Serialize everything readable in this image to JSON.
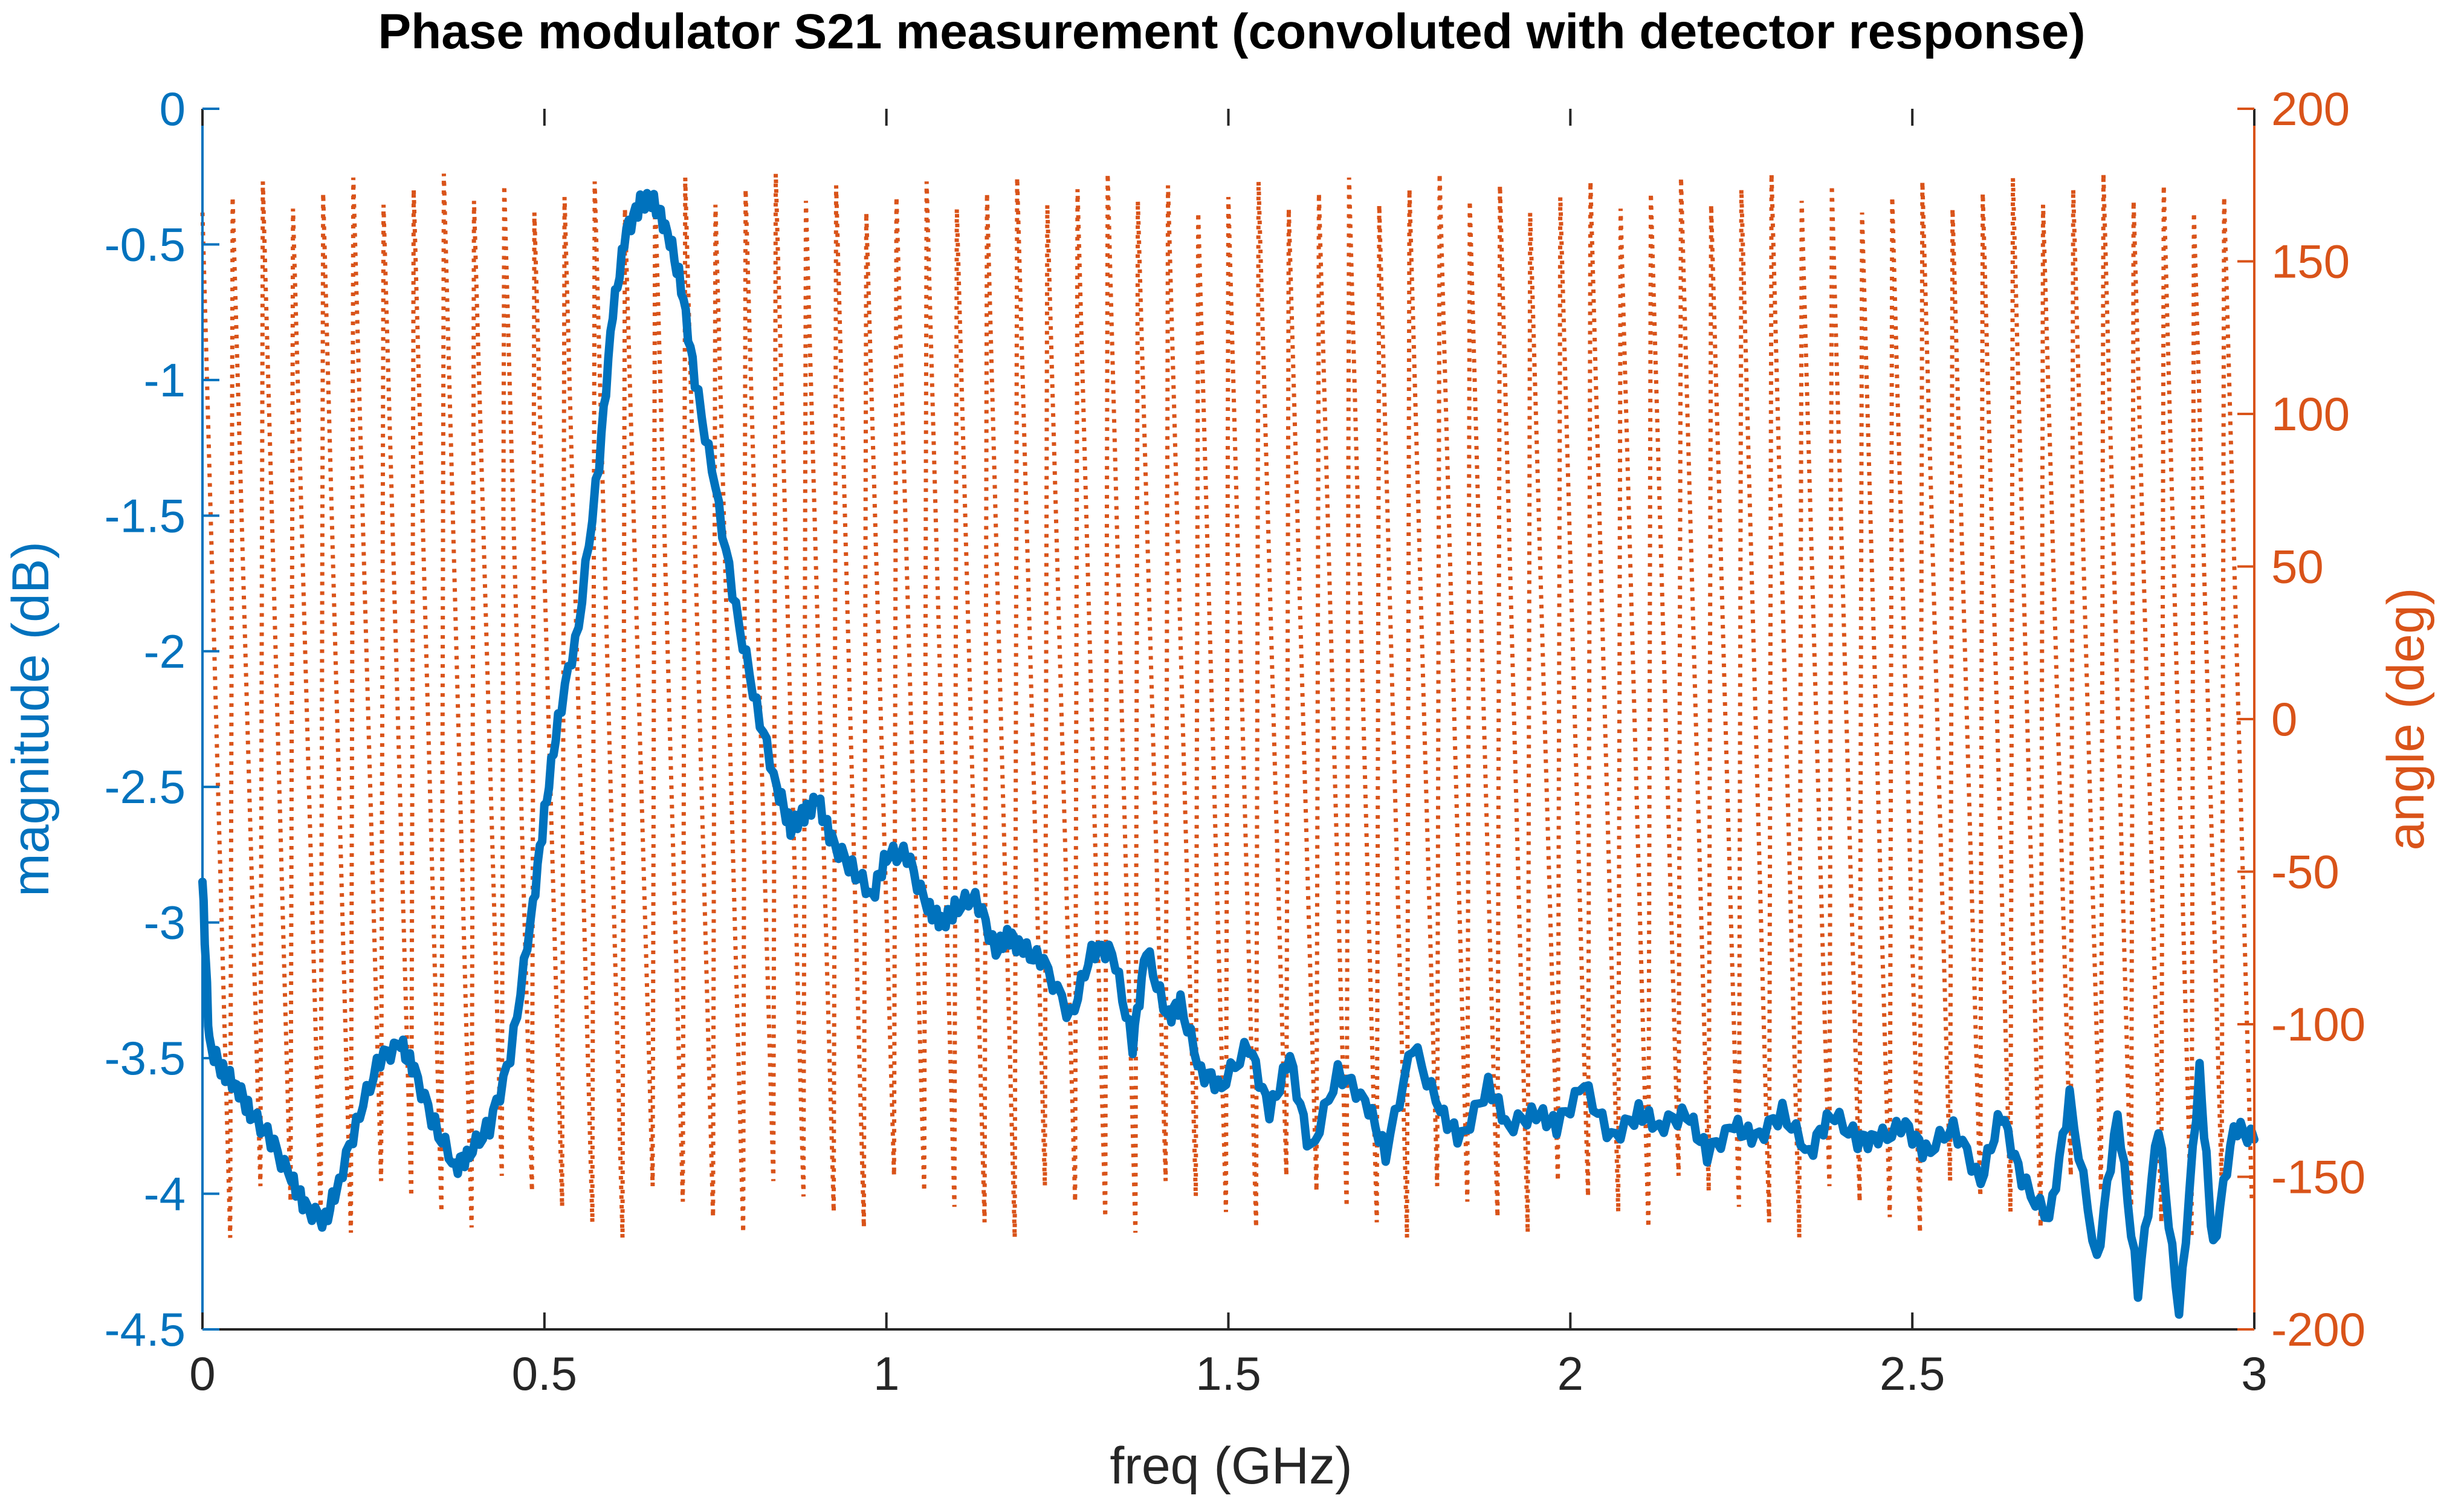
{
  "chart_data": {
    "type": "line",
    "title": "Phase modulator S21 measurement (convoluted with detector response)",
    "xlabel": "freq (GHz)",
    "ylabel_left": "magnitude (dB)",
    "ylabel_right": "angle (deg)",
    "xlim": [
      0,
      3
    ],
    "ylim_left": [
      -4.5,
      0
    ],
    "ylim_right": [
      -200,
      200
    ],
    "x_ticks": [
      "0",
      "0.5",
      "1",
      "1.5",
      "2",
      "2.5",
      "3"
    ],
    "y_ticks_left": [
      "0",
      "-0.5",
      "-1",
      "-1.5",
      "-2",
      "-2.5",
      "-3",
      "-3.5",
      "-4",
      "-4.5"
    ],
    "y_ticks_right": [
      "200",
      "150",
      "100",
      "50",
      "0",
      "-50",
      "-100",
      "-150",
      "-200"
    ],
    "grid": false,
    "colors": {
      "magnitude": "#0072BD",
      "angle": "#D95319",
      "text": "#000000"
    },
    "series": [
      {
        "axis": "left",
        "style": "solid",
        "x": [
          0.0,
          0.01,
          0.03,
          0.05,
          0.07,
          0.1,
          0.13,
          0.15,
          0.18,
          0.2,
          0.23,
          0.26,
          0.29,
          0.31,
          0.34,
          0.37,
          0.39,
          0.42,
          0.45,
          0.48,
          0.5,
          0.52,
          0.55,
          0.58,
          0.6,
          0.62,
          0.64,
          0.66,
          0.68,
          0.7,
          0.72,
          0.75,
          0.78,
          0.81,
          0.84,
          0.86,
          0.88,
          0.9,
          0.92,
          0.95,
          0.98,
          1.0,
          1.03,
          1.06,
          1.08,
          1.1,
          1.13,
          1.16,
          1.18,
          1.2,
          1.23,
          1.27,
          1.3,
          1.33,
          1.36,
          1.38,
          1.41,
          1.43,
          1.46,
          1.49,
          1.53,
          1.56,
          1.59,
          1.62,
          1.66,
          1.7,
          1.73,
          1.77,
          1.81,
          1.84,
          1.88,
          1.91,
          1.95,
          1.98,
          2.02,
          2.06,
          2.1,
          2.13,
          2.17,
          2.2,
          2.24,
          2.27,
          2.31,
          2.35,
          2.38,
          2.42,
          2.45,
          2.49,
          2.52,
          2.56,
          2.6,
          2.63,
          2.66,
          2.7,
          2.73,
          2.77,
          2.8,
          2.83,
          2.86,
          2.89,
          2.92,
          2.94,
          2.97,
          3.0
        ],
        "y": [
          -2.85,
          -3.45,
          -3.55,
          -3.6,
          -3.7,
          -3.8,
          -3.95,
          -4.05,
          -4.1,
          -3.95,
          -3.7,
          -3.5,
          -3.45,
          -3.55,
          -3.75,
          -3.9,
          -3.85,
          -3.75,
          -3.5,
          -3.0,
          -2.6,
          -2.25,
          -1.9,
          -1.3,
          -0.75,
          -0.45,
          -0.35,
          -0.34,
          -0.45,
          -0.65,
          -1.0,
          -1.4,
          -1.85,
          -2.2,
          -2.5,
          -2.65,
          -2.6,
          -2.55,
          -2.7,
          -2.8,
          -2.9,
          -2.75,
          -2.75,
          -2.95,
          -3.0,
          -2.95,
          -2.9,
          -3.1,
          -3.05,
          -3.1,
          -3.15,
          -3.35,
          -3.1,
          -3.1,
          -3.45,
          -3.1,
          -3.35,
          -3.3,
          -3.55,
          -3.6,
          -3.45,
          -3.7,
          -3.5,
          -3.85,
          -3.55,
          -3.65,
          -3.85,
          -3.45,
          -3.7,
          -3.8,
          -3.6,
          -3.75,
          -3.7,
          -3.75,
          -3.6,
          -3.8,
          -3.7,
          -3.75,
          -3.7,
          -3.85,
          -3.75,
          -3.8,
          -3.7,
          -3.85,
          -3.7,
          -3.8,
          -3.8,
          -3.75,
          -3.85,
          -3.75,
          -3.95,
          -3.7,
          -3.95,
          -4.1,
          -3.65,
          -4.25,
          -3.7,
          -4.35,
          -3.75,
          -4.45,
          -3.55,
          -4.2,
          -3.75,
          -3.8
        ]
      },
      {
        "axis": "right",
        "style": "dotted",
        "wraps_per_span": 68,
        "x_range": [
          0,
          3
        ],
        "range_deg": [
          -178,
          178
        ]
      }
    ]
  }
}
